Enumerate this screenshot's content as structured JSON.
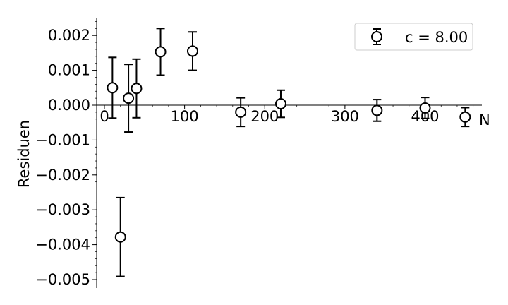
{
  "chart_data": {
    "type": "scatter",
    "title": "",
    "xlabel": "N",
    "ylabel": "Residuen",
    "xlim": [
      -12,
      470
    ],
    "ylim": [
      -0.0052,
      0.00255
    ],
    "x_ticks": [
      0,
      100,
      200,
      300,
      400
    ],
    "x_tick_labels": [
      "0",
      "100",
      "200",
      "300",
      "400"
    ],
    "y_ticks": [
      0.002,
      0.001,
      0.0,
      -0.001,
      -0.002,
      -0.003,
      -0.004,
      -0.005
    ],
    "y_tick_labels": [
      "0.002",
      "0.001",
      "0.000",
      "−0.001",
      "−0.002",
      "−0.003",
      "−0.004",
      "−0.005"
    ],
    "grid": false,
    "legend_position": "top-right",
    "series": [
      {
        "name": "c = 8.00",
        "marker": "open-circle",
        "color": "#000000",
        "points": [
          {
            "x": 10,
            "y": 0.0005,
            "err": 0.00087
          },
          {
            "x": 20,
            "y": -0.00378,
            "err": 0.00113
          },
          {
            "x": 30,
            "y": 0.0002,
            "err": 0.00097
          },
          {
            "x": 40,
            "y": 0.00048,
            "err": 0.00084
          },
          {
            "x": 70,
            "y": 0.00153,
            "err": 0.00067
          },
          {
            "x": 110,
            "y": 0.00155,
            "err": 0.00055
          },
          {
            "x": 170,
            "y": -0.0002,
            "err": 0.00041
          },
          {
            "x": 220,
            "y": 4e-05,
            "err": 0.00039
          },
          {
            "x": 340,
            "y": -0.00015,
            "err": 0.00031
          },
          {
            "x": 400,
            "y": -8e-05,
            "err": 0.0003
          },
          {
            "x": 450,
            "y": -0.00034,
            "err": 0.00027
          }
        ]
      }
    ]
  }
}
